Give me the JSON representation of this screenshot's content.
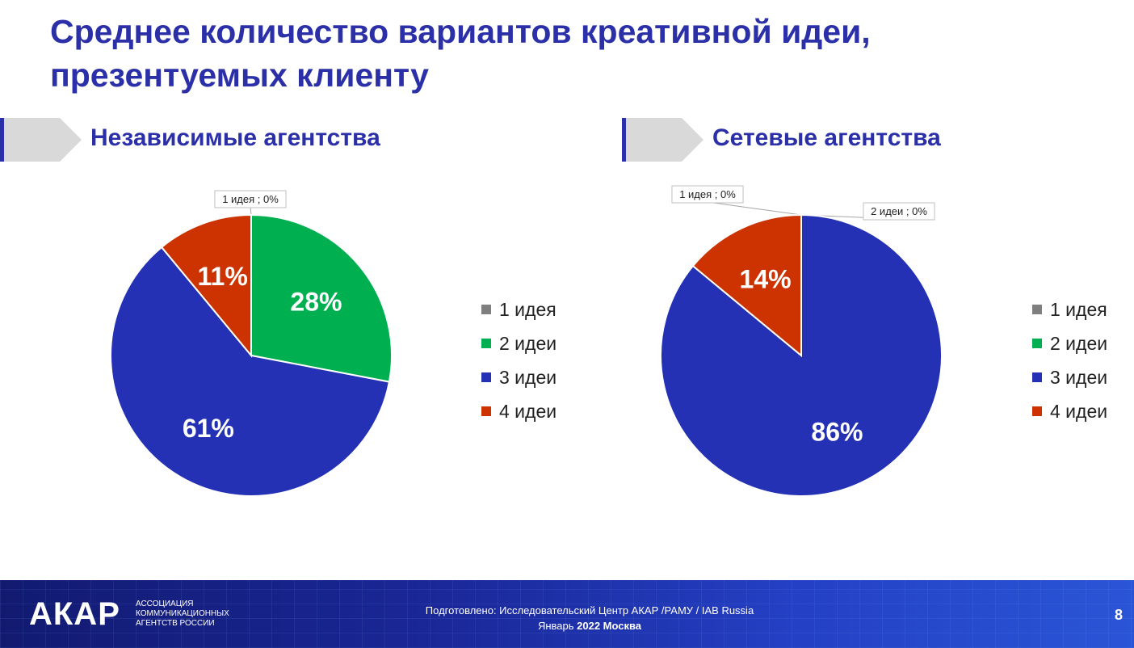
{
  "title": "Среднее количество вариантов креативной идеи, презентуемых клиенту",
  "colors": {
    "accent": "#2b30a8",
    "gray": "#7f7f7f",
    "green": "#00b050",
    "blue": "#2431b4",
    "red": "#cc3300"
  },
  "chart_data": [
    {
      "type": "pie",
      "title": "Независимые агентства",
      "categories": [
        "1 идея",
        "2 идеи",
        "3 идеи",
        "4 идеи"
      ],
      "values": [
        0,
        28,
        61,
        11
      ],
      "labels": [
        "1 идея ; 0%",
        "28%",
        "61%",
        "11%"
      ],
      "colors": [
        "#7f7f7f",
        "#00b050",
        "#2431b4",
        "#cc3300"
      ],
      "legend": "right"
    },
    {
      "type": "pie",
      "title": "Сетевые агентства",
      "categories": [
        "1 идея",
        "2 идеи",
        "3 идеи",
        "4 идеи"
      ],
      "values": [
        0,
        0,
        86,
        14
      ],
      "labels": [
        "1 идея ; 0%",
        "2 идеи ; 0%",
        "86%",
        "14%"
      ],
      "colors": [
        "#7f7f7f",
        "#00b050",
        "#2431b4",
        "#cc3300"
      ],
      "legend": "right"
    }
  ],
  "footer": {
    "logo": "АКАР",
    "logo_sub": "АССОЦИАЦИЯ КОММУНИКАЦИОННЫХ АГЕНТСТВ РОССИИ",
    "credits_line1": "Подготовлено: Исследовательский Центр АКАР /РАМУ / IAB Russia",
    "credits_month": "Январь ",
    "credits_year_city": "2022 Москва",
    "page_number": "8"
  }
}
